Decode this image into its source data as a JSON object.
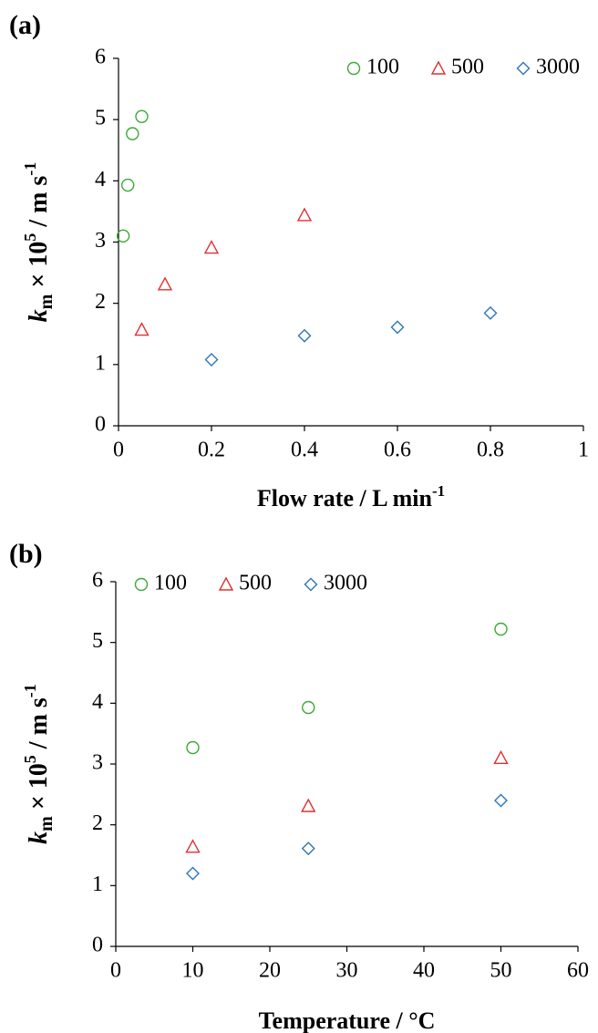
{
  "chart_data": [
    {
      "type": "scatter",
      "panel": "(a)",
      "x_label": [
        "Flow rate / L min",
        "-1"
      ],
      "y_label": [
        "k",
        "m",
        " × 10",
        "5",
        " / m s",
        "-1"
      ],
      "xlim": [
        0,
        1
      ],
      "xticks": [
        0,
        0.2,
        0.4,
        0.6,
        0.8,
        1
      ],
      "ylim": [
        0,
        6
      ],
      "yticks": [
        0,
        1,
        2,
        3,
        4,
        5,
        6
      ],
      "legend": "top-right",
      "series": [
        {
          "name": "100",
          "color": "#3aa935",
          "marker": "circle",
          "x": [
            0.01,
            0.02,
            0.03,
            0.05
          ],
          "values": [
            3.1,
            3.93,
            4.77,
            5.05
          ]
        },
        {
          "name": "500",
          "color": "#e03030",
          "marker": "triangle",
          "x": [
            0.05,
            0.1,
            0.2,
            0.4
          ],
          "values": [
            1.57,
            2.31,
            2.91,
            3.44
          ]
        },
        {
          "name": "3000",
          "color": "#2e75b6",
          "marker": "diamond",
          "x": [
            0.2,
            0.4,
            0.6,
            0.8
          ],
          "values": [
            1.08,
            1.47,
            1.61,
            1.84
          ]
        }
      ]
    },
    {
      "type": "scatter",
      "panel": "(b)",
      "x_label": [
        "Temperature / °C"
      ],
      "y_label": [
        "k",
        "m",
        " × 10",
        "5",
        " / m s",
        "-1"
      ],
      "xlim": [
        0,
        60
      ],
      "xticks": [
        0,
        10,
        20,
        30,
        40,
        50,
        60
      ],
      "ylim": [
        0,
        6
      ],
      "yticks": [
        0,
        1,
        2,
        3,
        4,
        5,
        6
      ],
      "legend": "top-left",
      "series": [
        {
          "name": "100",
          "color": "#3aa935",
          "marker": "circle",
          "x": [
            10,
            25,
            50
          ],
          "values": [
            3.27,
            3.93,
            5.22
          ]
        },
        {
          "name": "500",
          "color": "#e03030",
          "marker": "triangle",
          "x": [
            10,
            25,
            50
          ],
          "values": [
            1.64,
            2.31,
            3.1
          ]
        },
        {
          "name": "3000",
          "color": "#2e75b6",
          "marker": "diamond",
          "x": [
            10,
            25,
            50
          ],
          "values": [
            1.2,
            1.61,
            2.4
          ]
        }
      ]
    }
  ]
}
